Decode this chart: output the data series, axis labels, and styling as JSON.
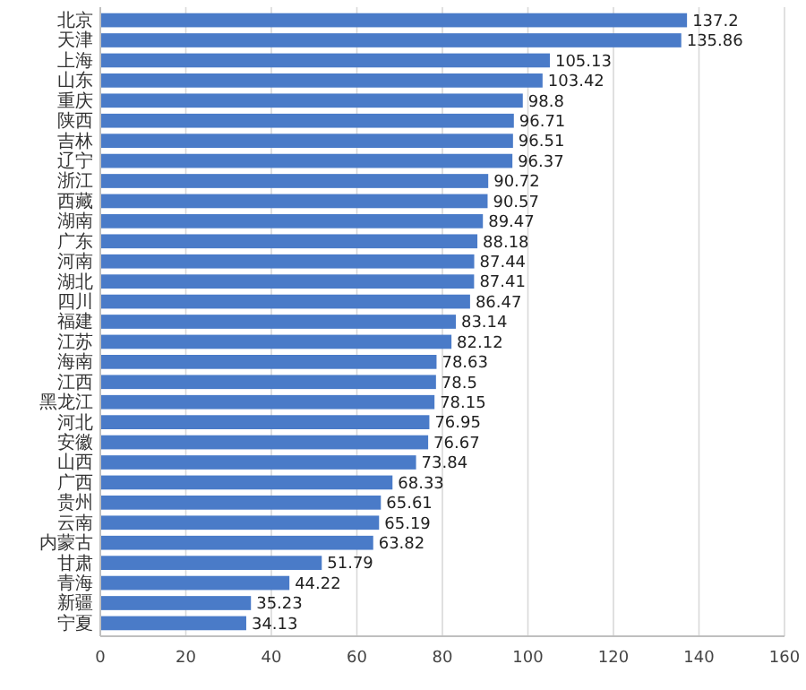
{
  "chart_data": {
    "type": "bar",
    "orientation": "horizontal",
    "categories": [
      "北京",
      "天津",
      "上海",
      "山东",
      "重庆",
      "陕西",
      "吉林",
      "辽宁",
      "浙江",
      "西藏",
      "湖南",
      "广东",
      "河南",
      "湖北",
      "四川",
      "福建",
      "江苏",
      "海南",
      "江西",
      "黑龙江",
      "河北",
      "安徽",
      "山西",
      "广西",
      "贵州",
      "云南",
      "内蒙古",
      "甘肃",
      "青海",
      "新疆",
      "宁夏"
    ],
    "values": [
      137.2,
      135.86,
      105.13,
      103.42,
      98.8,
      96.71,
      96.51,
      96.37,
      90.72,
      90.57,
      89.47,
      88.18,
      87.44,
      87.41,
      86.47,
      83.14,
      82.12,
      78.63,
      78.5,
      78.15,
      76.95,
      76.67,
      73.84,
      68.33,
      65.61,
      65.19,
      63.82,
      51.79,
      44.22,
      35.23,
      34.13
    ],
    "color": "#4a7bc8",
    "xlim": [
      0,
      160
    ],
    "xticks": [
      0,
      20,
      40,
      60,
      80,
      100,
      120,
      140,
      160
    ],
    "grid": "x",
    "data_labels": true
  }
}
